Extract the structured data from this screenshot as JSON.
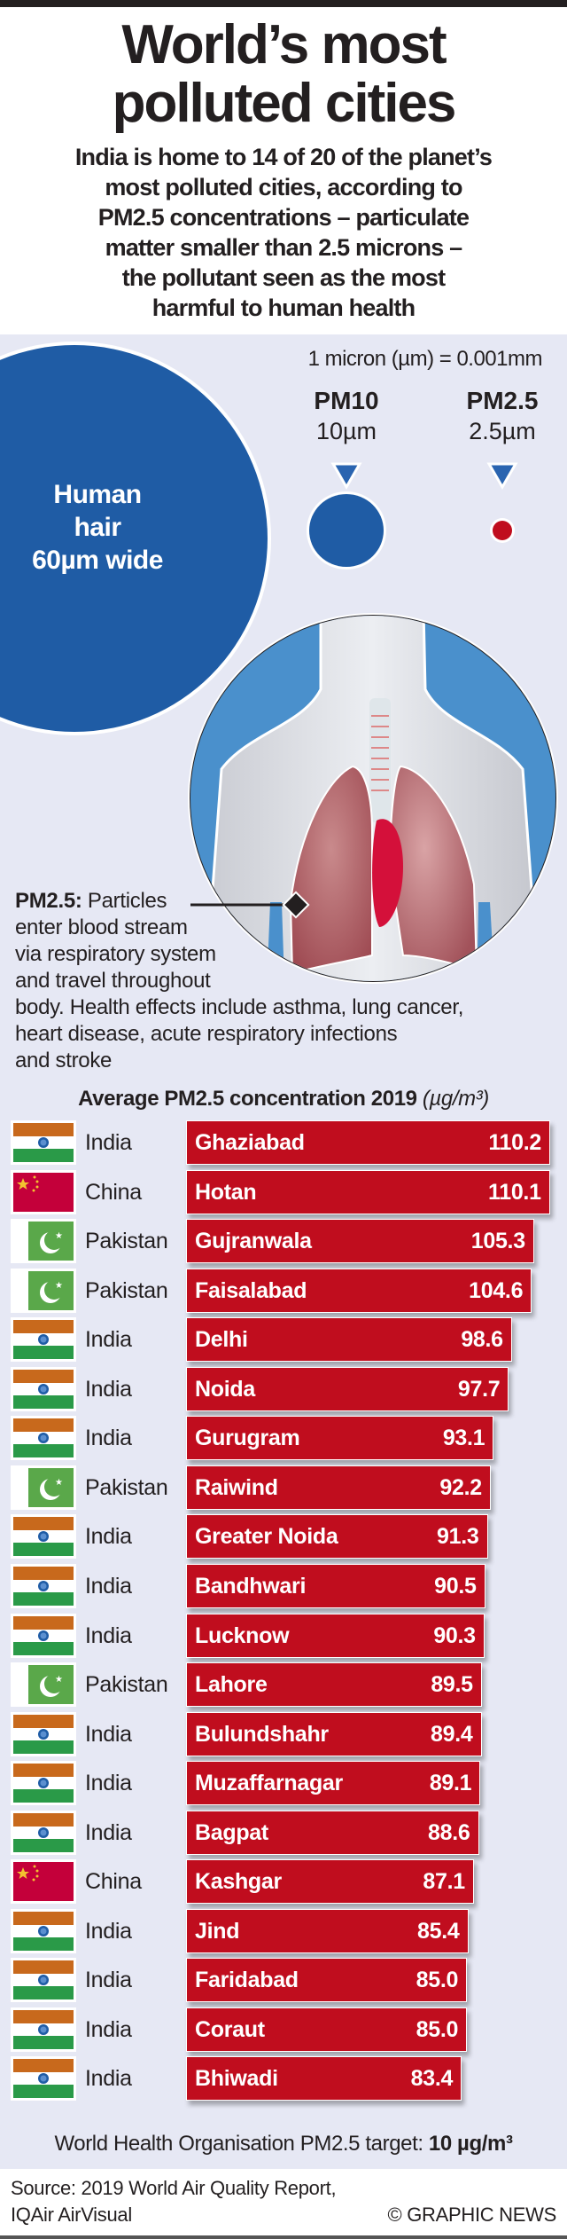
{
  "header": {
    "title_lines": [
      "World’s most",
      "polluted cities"
    ],
    "subtitle_lines": [
      "India is home to 14 of 20 of the planet’s",
      "most polluted cities, according to",
      "PM2.5 concentrations – particulate",
      "matter smaller than 2.5 microns –",
      "the pollutant seen as the most",
      "harmful to human health"
    ]
  },
  "scale": {
    "micron_note": "1 micron (µm) = 0.001mm",
    "hair_lines": [
      "Human",
      "hair",
      "60µm wide"
    ],
    "pm10": {
      "label": "PM10",
      "size": "10µm"
    },
    "pm25": {
      "label": "PM2.5",
      "size": "2.5µm"
    }
  },
  "annotation": {
    "bold": "PM2.5:",
    "first": " Particles",
    "lines": [
      "enter blood stream",
      "via respiratory system",
      "and travel throughout",
      "body. Health effects include asthma, lung cancer,",
      "heart disease, acute respiratory infections",
      "and stroke"
    ]
  },
  "colors": {
    "bar": "#c00d1e",
    "hair": "#1f5ca5",
    "body_bg": "#4a90cc",
    "panel": "#e6e8f4"
  },
  "chart_data": {
    "type": "bar",
    "orientation": "horizontal",
    "title": "Average PM2.5 concentration 2019",
    "unit": "(µg/m³)",
    "categories": [
      "Ghaziabad",
      "Hotan",
      "Gujranwala",
      "Faisalabad",
      "Delhi",
      "Noida",
      "Gurugram",
      "Raiwind",
      "Greater Noida",
      "Bandhwari",
      "Lucknow",
      "Lahore",
      "Bulundshahr",
      "Muzaffarnagar",
      "Bagpat",
      "Kashgar",
      "Jind",
      "Faridabad",
      "Coraut",
      "Bhiwadi"
    ],
    "countries": [
      "India",
      "China",
      "Pakistan",
      "Pakistan",
      "India",
      "India",
      "India",
      "Pakistan",
      "India",
      "India",
      "India",
      "Pakistan",
      "India",
      "India",
      "India",
      "China",
      "India",
      "India",
      "India",
      "India"
    ],
    "values": [
      110.2,
      110.1,
      105.3,
      104.6,
      98.6,
      97.7,
      93.1,
      92.2,
      91.3,
      90.5,
      90.3,
      89.5,
      89.4,
      89.1,
      88.6,
      87.1,
      85.4,
      85.0,
      85.0,
      83.4
    ],
    "value_labels": [
      "110.2",
      "110.1",
      "105.3",
      "104.6",
      "98.6",
      "97.7",
      "93.1",
      "92.2",
      "91.3",
      "90.5",
      "90.3",
      "89.5",
      "89.4",
      "89.1",
      "88.6",
      "87.1",
      "85.4",
      "85.0",
      "85.0",
      "83.4"
    ]
  },
  "footer": {
    "who_text": "World Health Organisation PM2.5 target: ",
    "who_value": "10 µg/m³",
    "source_lines": [
      "Source: 2019 World Air Quality Report,",
      "IQAir AirVisual"
    ],
    "credit": "© GRAPHIC NEWS"
  }
}
